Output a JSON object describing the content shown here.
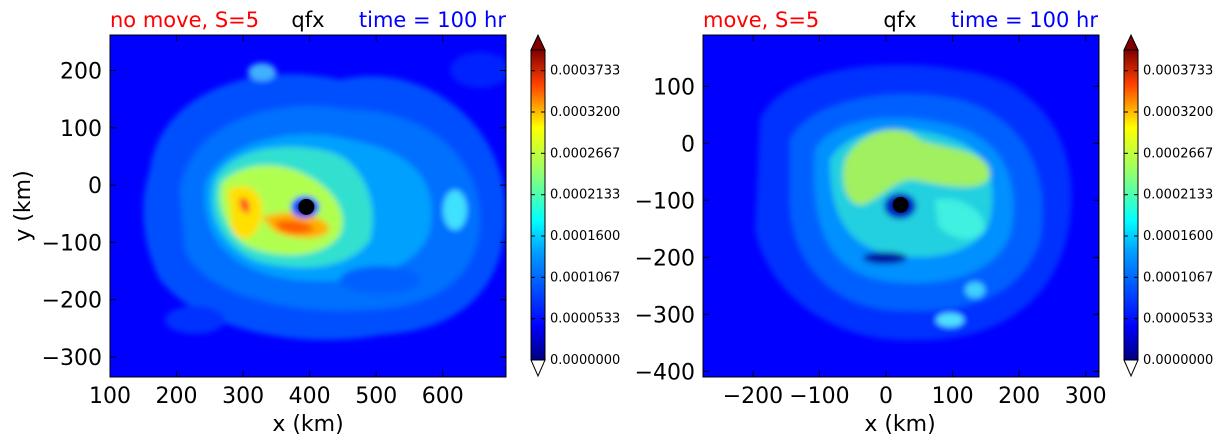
{
  "chart_data": [
    {
      "type": "heatmap",
      "variable": "qfx",
      "title_left": "no move, S=5",
      "title_center": "qfx",
      "title_right": "time = 100 hr",
      "xlabel": "x (km)",
      "ylabel": "y (km)",
      "xlim": [
        100,
        695
      ],
      "ylim": [
        -335,
        262
      ],
      "xticks": [
        "100",
        "200",
        "300",
        "400",
        "500",
        "600"
      ],
      "yticks": [
        "−300",
        "−200",
        "−100",
        "0",
        "100",
        "200"
      ],
      "xtick_values": [
        100,
        200,
        300,
        400,
        500,
        600
      ],
      "ytick_values": [
        -300,
        -200,
        -100,
        0,
        100,
        200
      ],
      "center_marker": {
        "x": 395,
        "y": -38
      },
      "colorbar": {
        "min": 0.0,
        "max": 0.0004,
        "tick_values": [
          0.0,
          5.33e-05,
          0.0001067,
          0.00016,
          0.0002133,
          0.0002667,
          0.00032,
          0.0003733
        ],
        "tick_labels": [
          "0.0000000",
          "0.0000533",
          "0.0001067",
          "0.0001600",
          "0.0002133",
          "0.0002667",
          "0.0003200",
          "0.0003733"
        ]
      }
    },
    {
      "type": "heatmap",
      "variable": "qfx",
      "title_left": "move, S=5",
      "title_center": "qfx",
      "title_right": "time = 100 hr",
      "xlabel": "x (km)",
      "ylabel": "",
      "xlim": [
        -275,
        320
      ],
      "ylim": [
        -410,
        190
      ],
      "xticks": [
        "−200",
        "−100",
        "0",
        "100",
        "200",
        "300"
      ],
      "yticks": [
        "−400",
        "−300",
        "−200",
        "−100",
        "0",
        "100"
      ],
      "xtick_values": [
        -200,
        -100,
        0,
        100,
        200,
        300
      ],
      "ytick_values": [
        -400,
        -300,
        -200,
        -100,
        0,
        100
      ],
      "center_marker": {
        "x": 22,
        "y": -108
      },
      "colorbar": {
        "min": 0.0,
        "max": 0.0004,
        "tick_values": [
          0.0,
          5.33e-05,
          0.0001067,
          0.00016,
          0.0002133,
          0.0002667,
          0.00032,
          0.0003733
        ],
        "tick_labels": [
          "0.0000000",
          "0.0000533",
          "0.0001067",
          "0.0001600",
          "0.0002133",
          "0.0002667",
          "0.0003200",
          "0.0003733"
        ]
      }
    }
  ],
  "colors": {
    "title_left": "#ff0000",
    "title_center": "#000000",
    "title_right": "#0000ff",
    "background_field": "#0000ff",
    "marker": "#000000"
  }
}
